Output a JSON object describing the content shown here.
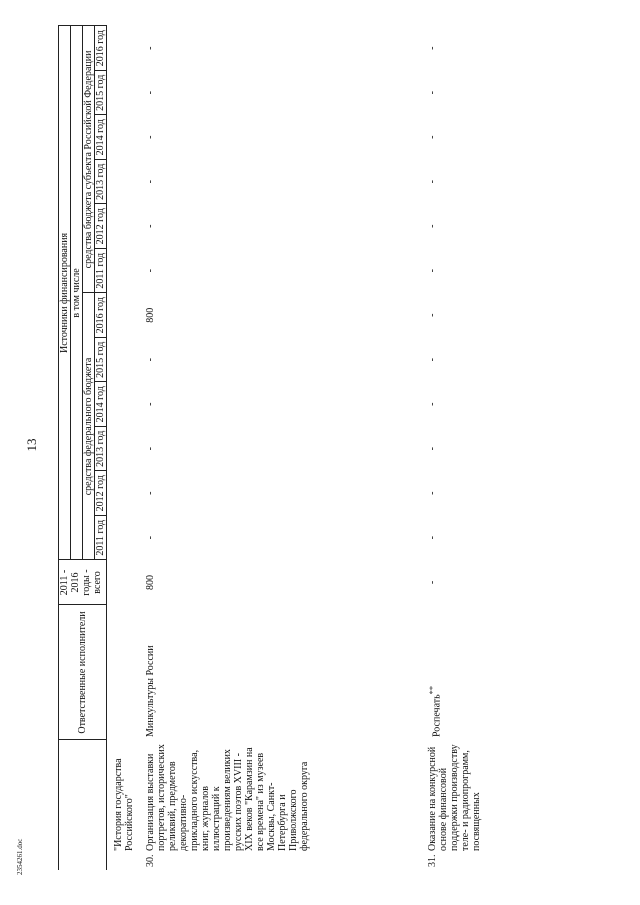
{
  "page_number": "13",
  "table": {
    "headers": {
      "responsible": "Ответственные исполнители",
      "total": "2011 - 2016 годы - всего",
      "sources": "Источники финансирования",
      "including": "в том числе",
      "federal": "средства федерального бюджета",
      "regional": "средства бюджета субъекта Российской Федерации",
      "federal_years": [
        "2011 год",
        "2012 год",
        "2013 год",
        "2014 год",
        "2015 год",
        "2016 год"
      ],
      "regional_years": [
        "2011 год",
        "2012 год",
        "2013 год",
        "2014 год",
        "2015 год",
        "2016 год"
      ]
    },
    "rows": [
      {
        "description": "\"История государства Российского\""
      },
      {
        "number": "30.",
        "description": "Организация выставки портретов, исторических реликвий, предметов декоративно-прикладного искусства, книг, журналов иллюстраций к произведениям великих русских поэтов XVIII - XIX веков \"Карамзин на все времена\" из музеев Москвы, Санкт-Петербурга и Приволжского федерального округа",
        "responsible": "Минкультуры России",
        "values": [
          "800",
          "-",
          "-",
          "-",
          "-",
          "-",
          "800",
          "-",
          "-",
          "-",
          "-",
          "-",
          "-"
        ]
      },
      {
        "number": "31.",
        "description": "Оказание на конкурсной основе финансовой поддержки производству теле- и радиопрограмм, посвященных",
        "responsible": "Роспечать",
        "responsible_note": "**",
        "values": [
          "-",
          "-",
          "-",
          "-",
          "-",
          "-",
          "-",
          "-",
          "-",
          "-",
          "-",
          "-",
          "-"
        ]
      }
    ]
  },
  "footer": "2354261.doc"
}
